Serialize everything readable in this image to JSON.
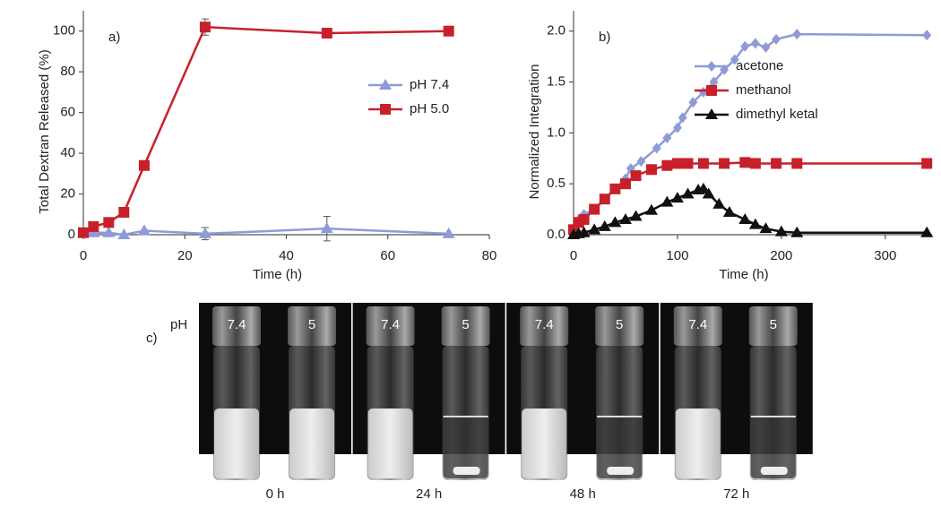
{
  "chart_data": [
    {
      "type": "line",
      "panel_label": "a)",
      "x_label": "Time (h)",
      "y_label": "Total Dextran Released (%)",
      "xlim": [
        0,
        80
      ],
      "xticks": [
        0,
        20,
        40,
        60,
        80
      ],
      "ylim": [
        0,
        110
      ],
      "yticks": [
        0,
        20,
        40,
        60,
        80,
        100
      ],
      "legend": "center right",
      "series": [
        {
          "name": "pH 7.4",
          "color": "#8e9bd6",
          "marker": "triangle",
          "x": [
            0,
            2,
            5,
            8,
            12,
            24,
            48,
            72
          ],
          "values": [
            1,
            1,
            1,
            0,
            2,
            0.5,
            3,
            0.5
          ],
          "errors": [
            null,
            null,
            null,
            null,
            null,
            3,
            6,
            null
          ]
        },
        {
          "name": "pH 5.0",
          "color": "#c8202a",
          "marker": "square",
          "x": [
            0,
            2,
            5,
            8,
            12,
            24,
            48,
            72
          ],
          "values": [
            1,
            4,
            6,
            11,
            34,
            102,
            99,
            100
          ],
          "errors": [
            null,
            null,
            null,
            null,
            null,
            4,
            null,
            null
          ]
        }
      ]
    },
    {
      "type": "line",
      "panel_label": "b)",
      "x_label": "Time (h)",
      "y_label": "Normalized Integration",
      "xlim": [
        0,
        345
      ],
      "xticks": [
        0,
        100,
        200,
        300
      ],
      "ylim": [
        0,
        2.2
      ],
      "yticks": [
        {
          "value": 0,
          "label": "0.0"
        },
        0.5,
        {
          "value": 1,
          "label": "1.0"
        },
        1.5,
        {
          "value": 2,
          "label": "2.0"
        }
      ],
      "legend": "upper right",
      "series": [
        {
          "name": "acetone",
          "color": "#8e9bd6",
          "marker": "diamond",
          "x": [
            0,
            5,
            10,
            20,
            30,
            40,
            50,
            55,
            65,
            80,
            90,
            100,
            105,
            115,
            125,
            135,
            145,
            155,
            165,
            175,
            185,
            195,
            215,
            340
          ],
          "values": [
            0.05,
            0.15,
            0.2,
            0.25,
            0.35,
            0.45,
            0.55,
            0.65,
            0.72,
            0.85,
            0.95,
            1.05,
            1.15,
            1.3,
            1.4,
            1.5,
            1.62,
            1.72,
            1.85,
            1.88,
            1.84,
            1.92,
            1.97,
            1.96
          ]
        },
        {
          "name": "methanol",
          "color": "#c8202a",
          "marker": "square",
          "x": [
            0,
            5,
            10,
            20,
            30,
            40,
            50,
            60,
            75,
            90,
            100,
            110,
            125,
            145,
            165,
            175,
            195,
            215,
            340
          ],
          "values": [
            0.05,
            0.12,
            0.15,
            0.25,
            0.35,
            0.45,
            0.5,
            0.58,
            0.64,
            0.68,
            0.7,
            0.7,
            0.7,
            0.7,
            0.71,
            0.7,
            0.7,
            0.7,
            0.7
          ]
        },
        {
          "name": "dimethyl ketal",
          "color": "#111111",
          "marker": "triangle",
          "x": [
            0,
            5,
            10,
            20,
            30,
            40,
            50,
            60,
            75,
            90,
            100,
            110,
            120,
            125,
            130,
            140,
            150,
            165,
            175,
            185,
            200,
            215,
            340
          ],
          "values": [
            0,
            0.01,
            0.02,
            0.05,
            0.08,
            0.12,
            0.15,
            0.18,
            0.24,
            0.32,
            0.36,
            0.4,
            0.44,
            0.45,
            0.4,
            0.3,
            0.22,
            0.15,
            0.1,
            0.06,
            0.03,
            0.02,
            0.02
          ]
        }
      ]
    }
  ],
  "photo": {
    "panel_label": "c)",
    "ph_label": "pH",
    "panels": [
      {
        "time": "0 h",
        "vials": [
          "7.4",
          "5"
        ]
      },
      {
        "time": "24 h",
        "vials": [
          "7.4",
          "5"
        ]
      },
      {
        "time": "48 h",
        "vials": [
          "7.4",
          "5"
        ]
      },
      {
        "time": "72 h",
        "vials": [
          "7.4",
          "5"
        ]
      }
    ]
  }
}
